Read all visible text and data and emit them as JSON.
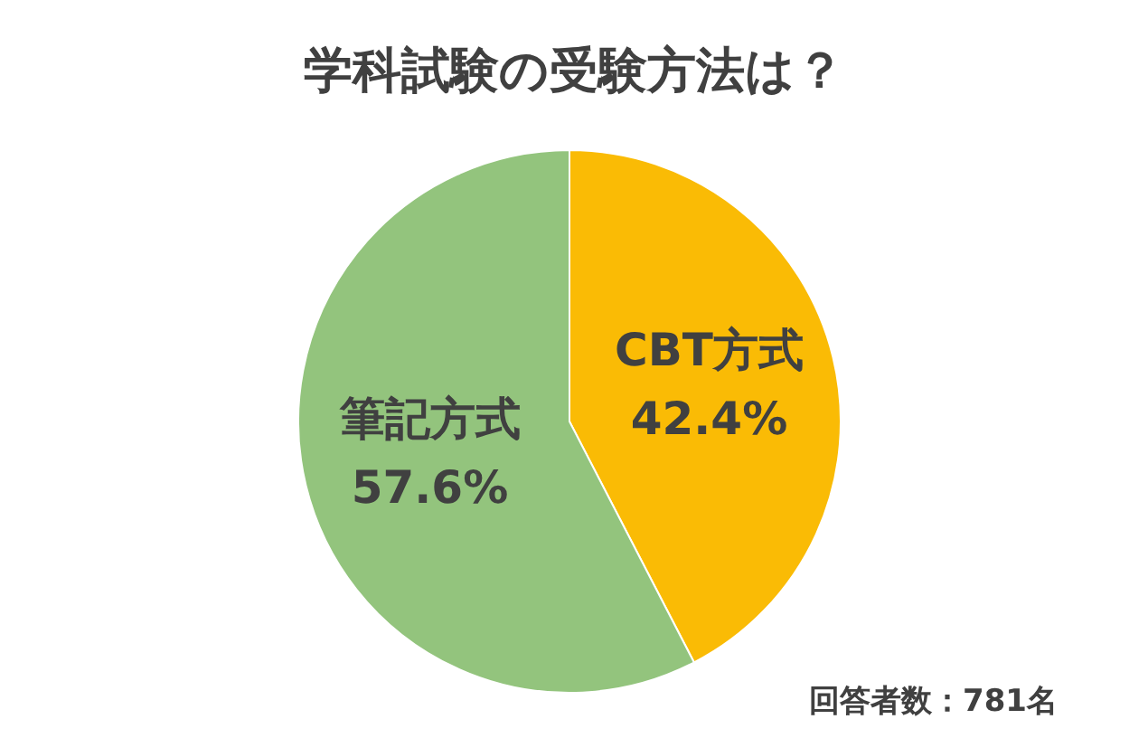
{
  "chart_data": {
    "type": "pie",
    "title": "学科試験の受験方法は？",
    "categories": [
      "CBT方式",
      "筆記方式"
    ],
    "values": [
      42.4,
      57.6
    ],
    "colors": [
      "#fabb05",
      "#93c47d"
    ],
    "value_labels": [
      "42.4%",
      "57.6%"
    ],
    "annotations": [
      "回答者数：781名"
    ]
  }
}
